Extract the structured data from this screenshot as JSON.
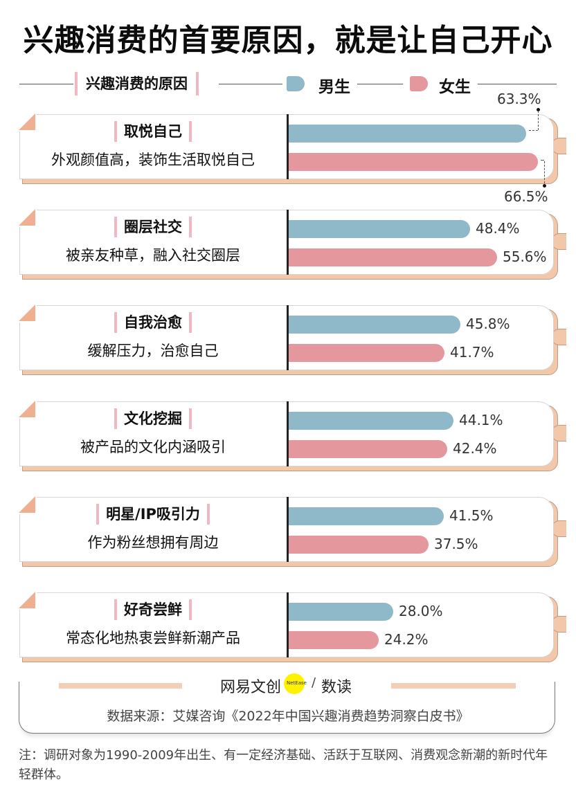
{
  "title": "兴趣消费的首要原因，就是让自己开心",
  "legend": {
    "category_label": "兴趣消费的原因",
    "male_label": "男生",
    "female_label": "女生",
    "male_color": "#8fb9c8",
    "female_color": "#e5979e"
  },
  "rows": [
    {
      "title": "取悦自己",
      "subtitle": "外观颜值高，装饰生活取悦自己",
      "male": 63.3,
      "female": 66.5,
      "male_label": "63.3%",
      "female_label": "66.5%"
    },
    {
      "title": "圈层社交",
      "subtitle": "被亲友种草，融入社交圈层",
      "male": 48.4,
      "female": 55.6,
      "male_label": "48.4%",
      "female_label": "55.6%"
    },
    {
      "title": "自我治愈",
      "subtitle": "缓解压力，治愈自己",
      "male": 45.8,
      "female": 41.7,
      "male_label": "45.8%",
      "female_label": "41.7%"
    },
    {
      "title": "文化挖掘",
      "subtitle": "被产品的文化内涵吸引",
      "male": 44.1,
      "female": 42.4,
      "male_label": "44.1%",
      "female_label": "42.4%"
    },
    {
      "title": "明星/IP吸引力",
      "subtitle": "作为粉丝想拥有周边",
      "male": 41.5,
      "female": 37.5,
      "male_label": "41.5%",
      "female_label": "37.5%"
    },
    {
      "title": "好奇尝鲜",
      "subtitle": "常态化地热衷尝鲜新潮产品",
      "male": 28.0,
      "female": 24.2,
      "male_label": "28.0%",
      "female_label": "24.2%"
    }
  ],
  "footer": {
    "brand_left": "网易文创",
    "brand_mark": "NetEase",
    "brand_slash": "/",
    "brand_right": "数读",
    "source": "数据来源：艾媒咨询《2022年中国兴趣消费趋势洞察白皮书》",
    "note": "注：调研对象为1990-2009年出生、有一定经济基础、活跃于互联网、消费观念新潮的新时代年轻群体。"
  },
  "chart_data": {
    "type": "bar",
    "orientation": "horizontal",
    "title": "兴趣消费的首要原因，就是让自己开心",
    "xlabel": "",
    "ylabel": "兴趣消费的原因",
    "categories": [
      "取悦自己",
      "圈层社交",
      "自我治愈",
      "文化挖掘",
      "明星/IP吸引力",
      "好奇尝鲜"
    ],
    "category_descriptions": [
      "外观颜值高，装饰生活取悦自己",
      "被亲友种草，融入社交圈层",
      "缓解压力，治愈自己",
      "被产品的文化内涵吸引",
      "作为粉丝想拥有周边",
      "常态化地热衷尝鲜新潮产品"
    ],
    "series": [
      {
        "name": "男生",
        "color": "#8fb9c8",
        "values": [
          63.3,
          48.4,
          45.8,
          44.1,
          41.5,
          28.0
        ]
      },
      {
        "name": "女生",
        "color": "#e5979e",
        "values": [
          66.5,
          55.6,
          41.7,
          42.4,
          37.5,
          24.2
        ]
      }
    ],
    "unit": "%",
    "legend_position": "top",
    "grid": false,
    "source": "数据来源：艾媒咨询《2022年中国兴趣消费趋势洞察白皮书》"
  }
}
